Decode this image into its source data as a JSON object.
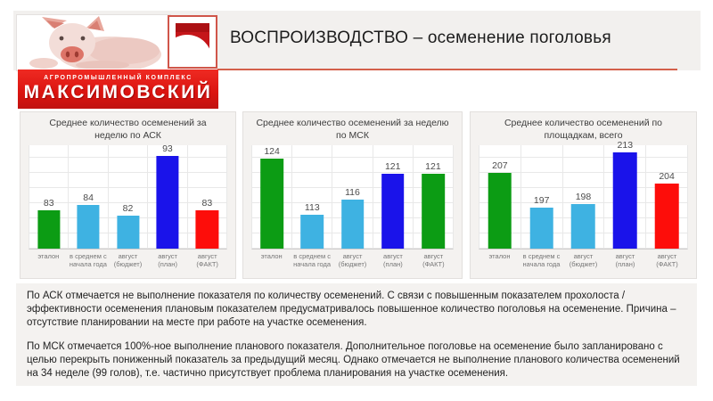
{
  "brand": {
    "banner_top": "АГРОПРОМЫШЛЕННЫЙ КОМПЛЕКС",
    "banner_main": "МАКСИМОВСКИЙ",
    "banner_color": "#da1410",
    "logo_color": "#c5161a"
  },
  "header": {
    "title": "ВОСПРОИЗВОДСТВО – осеменение поголовья",
    "underline_color": "#d4604b"
  },
  "chart_data": [
    {
      "type": "bar",
      "title": "Среднее количество осеменений за неделю по АСК",
      "categories": [
        "эталон",
        "в среднем с начала года",
        "август (бюджет)",
        "август (план)",
        "август (ФАКТ)"
      ],
      "values": [
        83,
        84,
        82,
        93,
        83
      ],
      "bar_colors": [
        "#0c9c14",
        "#3eb2e2",
        "#3eb2e2",
        "#1a13ea",
        "#fd0d0a"
      ],
      "ylim": [
        76,
        95
      ],
      "grid": true,
      "legend": "none",
      "data_labels": true
    },
    {
      "type": "bar",
      "title": "Среднее количество осеменений за неделю по МСК",
      "categories": [
        "эталон",
        "в среднем с начала года",
        "август (бюджет)",
        "август (план)",
        "август (ФАКТ)"
      ],
      "values": [
        124,
        113,
        116,
        121,
        121
      ],
      "bar_colors": [
        "#0c9c14",
        "#3eb2e2",
        "#3eb2e2",
        "#1a13ea",
        "#0c9c14"
      ],
      "ylim": [
        106.5,
        126.5
      ],
      "grid": true,
      "legend": "none",
      "data_labels": true
    },
    {
      "type": "bar",
      "title": "Среднее количество осеменений по площадкам, всего",
      "categories": [
        "эталон",
        "в среднем с начала года",
        "август (бюджет)",
        "август (план)",
        "август (ФАКТ)"
      ],
      "values": [
        207,
        197,
        198,
        213,
        204
      ],
      "bar_colors": [
        "#0c9c14",
        "#3eb2e2",
        "#3eb2e2",
        "#1a13ea",
        "#fd0d0a"
      ],
      "ylim": [
        185,
        215
      ],
      "grid": true,
      "legend": "none",
      "data_labels": true
    }
  ],
  "analysis": {
    "p1": "По АСК отмечается не выполнение показателя по количеству осеменений. С связи с повышенным показателем прохолоста / эффективности осеменения плановым показателем предусматривалось повышенное количество поголовья на осеменение. Причина – отсутствие планировании на месте при работе на участке осеменения.",
    "p2": "По МСК отмечается 100%-ное выполнение планового показателя. Дополнительное поголовье на осеменение было запланировано с целью перекрыть пониженный показатель за предыдущий месяц. Однако отмечается не выполнение планового количества осеменений на 34 неделе (99 голов), т.е. частично присутствует проблема планирования на участке осеменения."
  }
}
